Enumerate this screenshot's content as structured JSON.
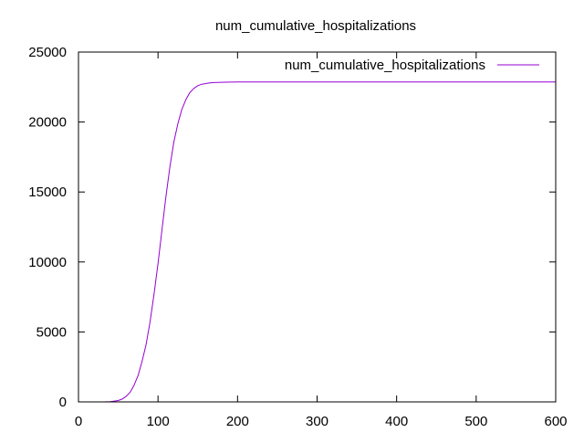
{
  "chart_data": {
    "type": "line",
    "title": "num_cumulative_hospitalizations",
    "xlabel": "",
    "ylabel": "",
    "xlim": [
      0,
      600
    ],
    "ylim": [
      0,
      25000
    ],
    "xticks": [
      0,
      100,
      200,
      300,
      400,
      500,
      600
    ],
    "yticks": [
      0,
      5000,
      10000,
      15000,
      20000,
      25000
    ],
    "grid": false,
    "legend_position": "top-right",
    "series": [
      {
        "name": "num_cumulative_hospitalizations",
        "color": "#9400d3",
        "x": [
          32,
          40,
          50,
          55,
          60,
          65,
          70,
          75,
          80,
          85,
          90,
          95,
          100,
          105,
          110,
          115,
          120,
          125,
          130,
          135,
          140,
          145,
          150,
          155,
          160,
          165,
          170,
          180,
          190,
          200,
          210,
          220,
          250,
          300,
          400,
          500,
          600
        ],
        "y": [
          0,
          20,
          100,
          200,
          400,
          700,
          1200,
          1900,
          2900,
          4100,
          5700,
          7700,
          9900,
          12300,
          14700,
          16800,
          18600,
          19900,
          20900,
          21600,
          22100,
          22400,
          22600,
          22700,
          22750,
          22800,
          22820,
          22840,
          22850,
          22860,
          22860,
          22860,
          22860,
          22860,
          22860,
          22860,
          22860
        ]
      }
    ]
  }
}
